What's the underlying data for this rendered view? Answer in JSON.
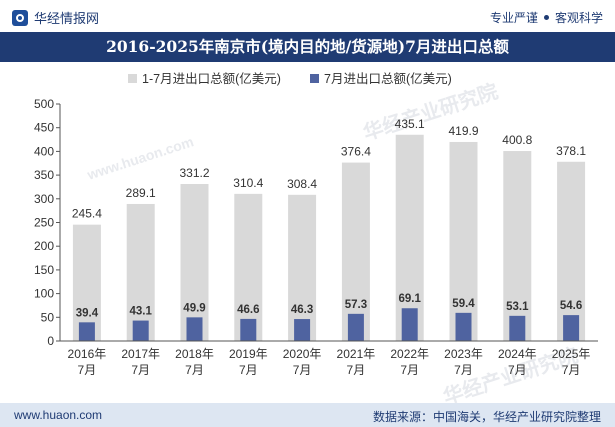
{
  "header": {
    "brand": "华经情报网",
    "tagline_left": "专业严谨",
    "tagline_right": "客观科学"
  },
  "title": "2016-2025年南京市(境内目的地/货源地)7月进出口总额",
  "legend": {
    "series1": "1-7月进出口总额(亿美元)",
    "series2": "7月进出口总额(亿美元)"
  },
  "footer": {
    "site": "www.huaon.com",
    "source": "数据来源：中国海关，华经产业研究院整理"
  },
  "watermarks": [
    "华经产业研究院",
    "www.huaon.com",
    "华经产业研究院"
  ],
  "colors": {
    "series1": "#d9d9d9",
    "series2": "#4f63a0",
    "title_bg": "#1f3b73"
  },
  "chart_data": {
    "type": "bar",
    "categories": [
      "2016年7月",
      "2017年7月",
      "2018年7月",
      "2019年7月",
      "2020年7月",
      "2021年7月",
      "2022年7月",
      "2023年7月",
      "2024年7月",
      "2025年7月"
    ],
    "category_lines": [
      [
        "2016年",
        "7月"
      ],
      [
        "2017年",
        "7月"
      ],
      [
        "2018年",
        "7月"
      ],
      [
        "2019年",
        "7月"
      ],
      [
        "2020年",
        "7月"
      ],
      [
        "2021年",
        "7月"
      ],
      [
        "2022年",
        "7月"
      ],
      [
        "2023年",
        "7月"
      ],
      [
        "2024年",
        "7月"
      ],
      [
        "2025年",
        "7月"
      ]
    ],
    "series": [
      {
        "name": "1-7月进出口总额(亿美元)",
        "values": [
          245.4,
          289.1,
          331.2,
          310.4,
          308.4,
          376.4,
          435.1,
          419.9,
          400.8,
          378.1
        ]
      },
      {
        "name": "7月进出口总额(亿美元)",
        "values": [
          39.4,
          43.1,
          49.9,
          46.6,
          46.3,
          57.3,
          69.1,
          59.4,
          53.1,
          54.6
        ]
      }
    ],
    "ylim": [
      0,
      500
    ],
    "yticks": [
      0,
      50,
      100,
      150,
      200,
      250,
      300,
      350,
      400,
      450,
      500
    ],
    "grid": false,
    "legend_position": "top-left"
  }
}
